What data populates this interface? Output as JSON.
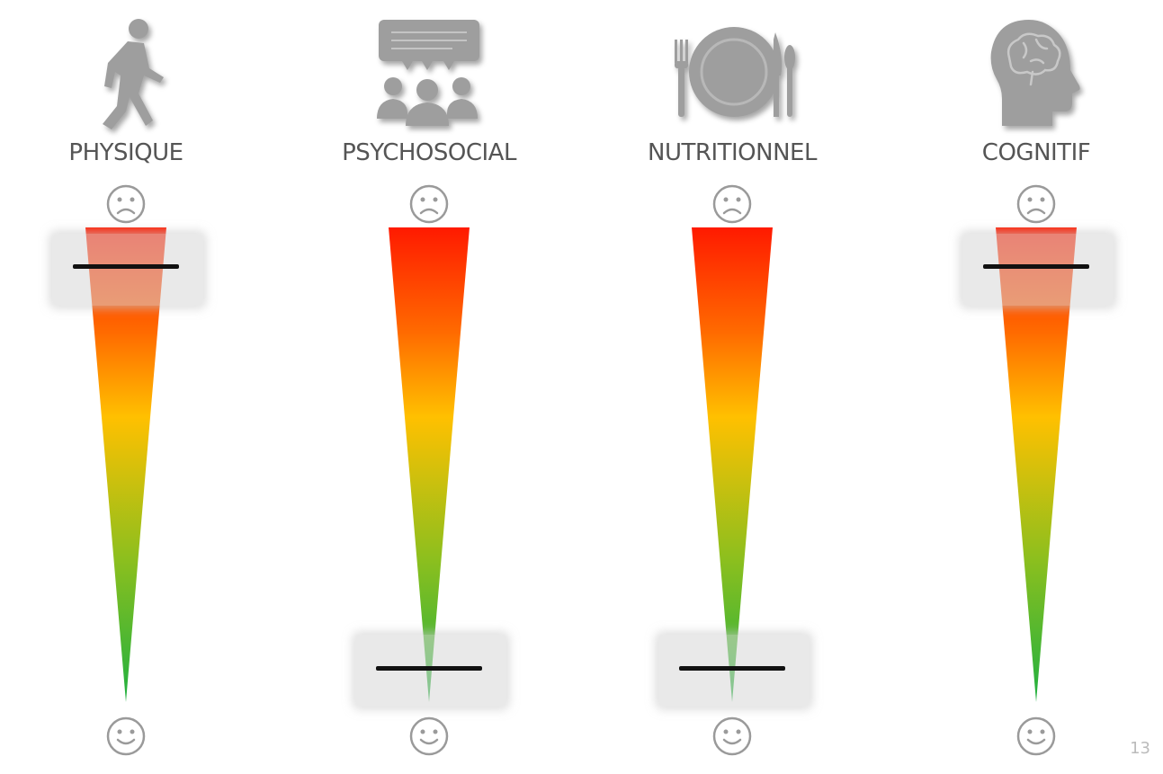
{
  "categories": [
    {
      "label": "PHYSIQUE",
      "icon": "walking-person-icon",
      "level": 0.08
    },
    {
      "label": "PSYCHOSOCIAL",
      "icon": "group-discussion-icon",
      "level": 0.92
    },
    {
      "label": "NUTRITIONNEL",
      "icon": "plate-cutlery-icon",
      "level": 0.92
    },
    {
      "label": "COGNITIF",
      "icon": "brain-head-icon",
      "level": 0.08
    }
  ],
  "scale": {
    "top": "sad-face-icon",
    "bottom": "happy-face-icon"
  },
  "colors": {
    "icon": "#9e9e9e",
    "gradient_top": "#ff1a00",
    "gradient_mid": "#ffc000",
    "gradient_bottom": "#1fb040",
    "marker": "#111111"
  },
  "page_number": "13"
}
